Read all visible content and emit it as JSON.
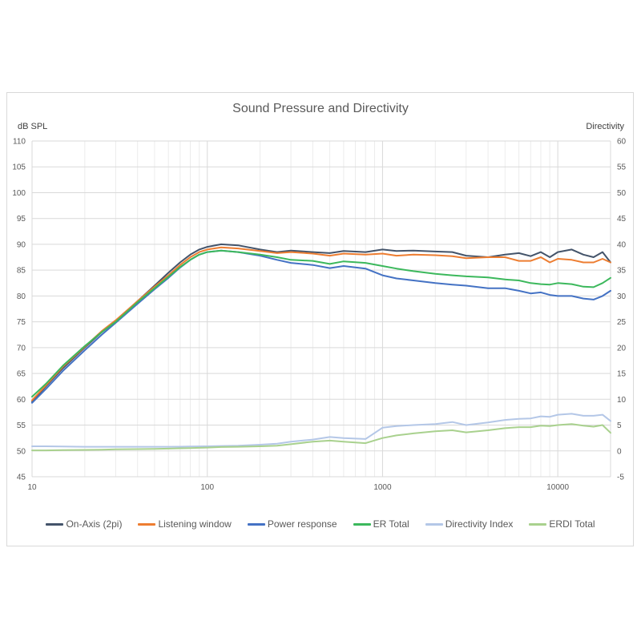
{
  "chart_data": {
    "type": "line",
    "title": "Sound Pressure and Directivity",
    "ylabel_left": "dB SPL",
    "ylabel_right": "Directivity",
    "xscale": "log",
    "xlim": [
      10,
      20000
    ],
    "ylim_left": [
      45,
      110
    ],
    "ylim_right": [
      -5,
      60
    ],
    "x_ticks": [
      "10",
      "100",
      "1000",
      "10000"
    ],
    "y_ticks_left": [
      "45",
      "50",
      "55",
      "60",
      "65",
      "70",
      "75",
      "80",
      "85",
      "90",
      "95",
      "100",
      "105",
      "110"
    ],
    "y_ticks_right": [
      "-5",
      "0",
      "5",
      "10",
      "15",
      "20",
      "25",
      "30",
      "35",
      "40",
      "45",
      "50",
      "55",
      "60"
    ],
    "x": [
      10,
      12,
      15,
      20,
      25,
      30,
      40,
      50,
      60,
      70,
      80,
      90,
      100,
      120,
      150,
      200,
      250,
      300,
      400,
      500,
      600,
      800,
      1000,
      1200,
      1500,
      2000,
      2500,
      3000,
      4000,
      5000,
      6000,
      7000,
      8000,
      9000,
      10000,
      12000,
      14000,
      16000,
      18000,
      20000
    ],
    "series": [
      {
        "name": "On-Axis (2pi)",
        "color": "#44546a",
        "axis": "left",
        "values": [
          59.5,
          62.5,
          66,
          70,
          73,
          75,
          79,
          82,
          84.5,
          86.5,
          88,
          89,
          89.5,
          90,
          89.8,
          89,
          88.5,
          88.8,
          88.5,
          88.3,
          88.7,
          88.5,
          89,
          88.7,
          88.8,
          88.6,
          88.5,
          87.8,
          87.5,
          88,
          88.3,
          87.7,
          88.5,
          87.5,
          88.5,
          89,
          88,
          87.5,
          88.5,
          86.5
        ]
      },
      {
        "name": "Listening window",
        "color": "#ed7d31",
        "axis": "left",
        "values": [
          59.8,
          62.7,
          66.3,
          70.2,
          73.2,
          75.3,
          79,
          81.8,
          84,
          86,
          87.5,
          88.5,
          89,
          89.4,
          89.2,
          88.7,
          88.3,
          88.5,
          88.2,
          87.8,
          88.2,
          88,
          88.2,
          87.8,
          88,
          87.9,
          87.7,
          87.3,
          87.5,
          87.5,
          86.8,
          86.8,
          87.5,
          86.5,
          87.2,
          87,
          86.5,
          86.5,
          87.2,
          86.5
        ]
      },
      {
        "name": "Power response",
        "color": "#4472c4",
        "axis": "left",
        "values": [
          59.3,
          62,
          65.5,
          69.5,
          72.5,
          74.8,
          78.5,
          81.3,
          83.5,
          85.5,
          87,
          88,
          88.5,
          88.8,
          88.5,
          87.8,
          87,
          86.4,
          86,
          85.4,
          85.8,
          85.3,
          84,
          83.4,
          83,
          82.5,
          82.2,
          82,
          81.5,
          81.5,
          81,
          80.5,
          80.7,
          80.2,
          80,
          80,
          79.5,
          79.3,
          80,
          81
        ]
      },
      {
        "name": "ER Total",
        "color": "#3cb85c",
        "axis": "left",
        "values": [
          60.5,
          63,
          66.5,
          70.3,
          73,
          75,
          78.8,
          81.5,
          83.7,
          85.6,
          87,
          88,
          88.5,
          88.8,
          88.5,
          88,
          87.5,
          87,
          86.8,
          86.2,
          86.7,
          86.4,
          85.8,
          85.3,
          84.8,
          84.3,
          84,
          83.8,
          83.6,
          83.2,
          83,
          82.5,
          82.3,
          82.2,
          82.5,
          82.3,
          81.8,
          81.7,
          82.5,
          83.5
        ]
      },
      {
        "name": "Directivity Index",
        "color": "#b4c7e7",
        "axis": "right",
        "values": [
          0.9,
          0.9,
          0.85,
          0.8,
          0.8,
          0.8,
          0.8,
          0.8,
          0.8,
          0.82,
          0.85,
          0.88,
          0.9,
          0.95,
          1.0,
          1.2,
          1.4,
          1.8,
          2.2,
          2.7,
          2.5,
          2.3,
          4.5,
          4.8,
          5.0,
          5.2,
          5.6,
          5.0,
          5.5,
          6.0,
          6.2,
          6.3,
          6.7,
          6.6,
          7.0,
          7.2,
          6.8,
          6.8,
          7.0,
          5.8
        ]
      },
      {
        "name": "ERDI Total",
        "color": "#a9d18e",
        "axis": "right",
        "values": [
          0.1,
          0.1,
          0.15,
          0.2,
          0.25,
          0.3,
          0.35,
          0.4,
          0.45,
          0.5,
          0.55,
          0.6,
          0.65,
          0.75,
          0.8,
          0.9,
          1.0,
          1.3,
          1.8,
          2.0,
          1.8,
          1.5,
          2.5,
          3.0,
          3.4,
          3.8,
          4.0,
          3.6,
          4.0,
          4.4,
          4.6,
          4.6,
          4.9,
          4.8,
          5.0,
          5.2,
          4.9,
          4.7,
          5.0,
          3.5
        ]
      }
    ]
  }
}
